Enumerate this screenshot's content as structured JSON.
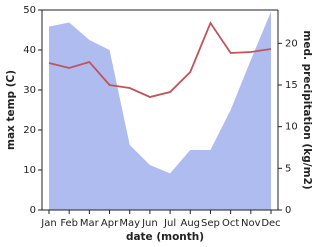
{
  "chart_data": {
    "type": "combo",
    "x_label": "date (month)",
    "y_label": "max temp (C)",
    "y2_label": "med. precipitation (kg/m2)",
    "categories": [
      "Jan",
      "Feb",
      "Mar",
      "Apr",
      "May",
      "Jun",
      "Jul",
      "Aug",
      "Sep",
      "Oct",
      "Nov",
      "Dec"
    ],
    "series": [
      {
        "kind": "line",
        "color": "#c0545a",
        "values": [
          36.75,
          35.5,
          37,
          31.25,
          30.5,
          28.25,
          29.5,
          34.5,
          46.75,
          39.25,
          39.5,
          40.25
        ]
      },
      {
        "kind": "area",
        "axis": "y2",
        "color": "#aebcf0",
        "values": [
          22,
          22.5,
          20.4,
          19.2,
          7.8,
          5.4,
          4.4,
          7.2,
          7.2,
          12,
          18,
          23.8
        ]
      }
    ],
    "ylim": [
      0,
      50
    ],
    "yticks": [
      0,
      10,
      20,
      30,
      40,
      50
    ],
    "y2lim": [
      0,
      24
    ],
    "y2ticks": [
      0,
      5,
      10,
      15,
      20
    ]
  }
}
